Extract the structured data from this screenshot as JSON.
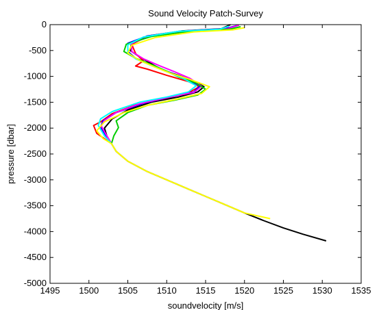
{
  "chart_data": {
    "type": "line",
    "title": "Sound Velocity Patch-Survey",
    "xlabel": "soundvelocity [m/s]",
    "ylabel": "pressure [dbar]",
    "xlim": [
      1495,
      1535
    ],
    "ylim": [
      -5000,
      0
    ],
    "xticks": [
      1495,
      1500,
      1505,
      1510,
      1515,
      1520,
      1525,
      1530,
      1535
    ],
    "yticks": [
      0,
      -500,
      -1000,
      -1500,
      -2000,
      -2500,
      -3000,
      -3500,
      -4000,
      -4500,
      -5000
    ],
    "grid": false,
    "legend": "none",
    "deep_segment": {
      "color": "#000000",
      "x": [
        1502.9,
        1503.5,
        1505.0,
        1507.5,
        1510.0,
        1512.5,
        1515.0,
        1517.5,
        1520.0,
        1522.5,
        1525.0,
        1527.5,
        1530.5
      ],
      "y": [
        -2300,
        -2450,
        -2640,
        -2840,
        -3000,
        -3160,
        -3320,
        -3480,
        -3640,
        -3790,
        -3930,
        -4050,
        -4180
      ]
    },
    "series": [
      {
        "color": "#000000",
        "x": [
          1518.2,
          1517.0,
          1512.0,
          1507.5,
          1505.5,
          1505.3,
          1506.5,
          1508.3,
          1509.5,
          1511.5,
          1513.5,
          1514.8,
          1514.0,
          1511.5,
          1508.0,
          1505.0,
          1503.0,
          1502.0,
          1502.3,
          1502.9
        ],
        "y": [
          0,
          -80,
          -120,
          -220,
          -350,
          -500,
          -620,
          -780,
          -880,
          -980,
          -1090,
          -1200,
          -1300,
          -1400,
          -1500,
          -1650,
          -1820,
          -2000,
          -2150,
          -2300
        ]
      },
      {
        "color": "#ff0000",
        "x": [
          1518.8,
          1517.2,
          1512.0,
          1507.5,
          1505.5,
          1506.0,
          1507.0,
          1506.0,
          1507.5,
          1510.0,
          1512.8,
          1514.2,
          1513.0,
          1510.0,
          1506.0,
          1503.0,
          1501.5,
          1500.6,
          1501.0,
          1502.9
        ],
        "y": [
          -30,
          -90,
          -130,
          -230,
          -380,
          -560,
          -700,
          -800,
          -860,
          -980,
          -1100,
          -1200,
          -1300,
          -1420,
          -1550,
          -1720,
          -1880,
          -1950,
          -2100,
          -2300
        ]
      },
      {
        "color": "#0000ff",
        "x": [
          1519.0,
          1517.5,
          1512.5,
          1507.5,
          1505.0,
          1505.0,
          1506.0,
          1508.0,
          1510.0,
          1512.0,
          1514.3,
          1513.5,
          1510.5,
          1507.0,
          1503.5,
          1501.8,
          1501.5,
          1502.2,
          1502.9
        ],
        "y": [
          -20,
          -80,
          -120,
          -220,
          -360,
          -520,
          -650,
          -780,
          -900,
          -1020,
          -1180,
          -1300,
          -1400,
          -1520,
          -1700,
          -1860,
          -1980,
          -2150,
          -2300
        ]
      },
      {
        "color": "#ff00ff",
        "x": [
          1519.3,
          1517.8,
          1512.5,
          1508.0,
          1505.5,
          1505.5,
          1507.0,
          1509.0,
          1511.0,
          1513.0,
          1514.5,
          1513.5,
          1510.0,
          1506.5,
          1503.5,
          1502.0,
          1501.6,
          1502.3,
          1502.9
        ],
        "y": [
          -10,
          -80,
          -120,
          -220,
          -360,
          -520,
          -660,
          -790,
          -910,
          -1040,
          -1190,
          -1310,
          -1410,
          -1530,
          -1700,
          -1850,
          -1960,
          -2150,
          -2300
        ]
      },
      {
        "color": "#00cc00",
        "x": [
          1519.5,
          1518.0,
          1513.0,
          1508.0,
          1504.8,
          1504.5,
          1506.0,
          1508.5,
          1510.0,
          1511.5,
          1513.8,
          1515.0,
          1514.0,
          1511.0,
          1507.5,
          1505.0,
          1503.5,
          1503.8,
          1503.2,
          1502.9
        ],
        "y": [
          -40,
          -90,
          -130,
          -230,
          -380,
          -520,
          -650,
          -800,
          -900,
          -1010,
          -1130,
          -1250,
          -1360,
          -1460,
          -1560,
          -1700,
          -1860,
          -1990,
          -2150,
          -2300
        ]
      },
      {
        "color": "#00ffff",
        "x": [
          1518.0,
          1516.8,
          1511.5,
          1507.0,
          1505.0,
          1505.0,
          1506.0,
          1508.0,
          1510.0,
          1512.0,
          1513.8,
          1512.8,
          1510.0,
          1506.5,
          1503.0,
          1501.5,
          1501.2,
          1502.0,
          1502.9
        ],
        "y": [
          -30,
          -90,
          -130,
          -240,
          -390,
          -540,
          -660,
          -790,
          -910,
          -1030,
          -1180,
          -1300,
          -1400,
          -1500,
          -1680,
          -1820,
          -1950,
          -2150,
          -2300
        ]
      },
      {
        "color": "#ffff00",
        "x": [
          1520.0,
          1518.5,
          1513.5,
          1508.5,
          1505.5,
          1505.0,
          1506.5,
          1508.5,
          1510.5,
          1513.0,
          1515.5,
          1514.5,
          1511.0,
          1507.5,
          1504.5,
          1502.0,
          1501.0,
          1501.8,
          1502.9,
          1503.5,
          1505.0,
          1507.5,
          1510.0,
          1512.5,
          1515.0,
          1517.5,
          1520.0,
          1523.3
        ],
        "y": [
          -60,
          -100,
          -140,
          -250,
          -400,
          -550,
          -690,
          -820,
          -940,
          -1060,
          -1200,
          -1330,
          -1450,
          -1560,
          -1700,
          -1880,
          -2050,
          -2200,
          -2300,
          -2450,
          -2640,
          -2840,
          -3000,
          -3160,
          -3320,
          -3480,
          -3640,
          -3750
        ]
      }
    ]
  }
}
